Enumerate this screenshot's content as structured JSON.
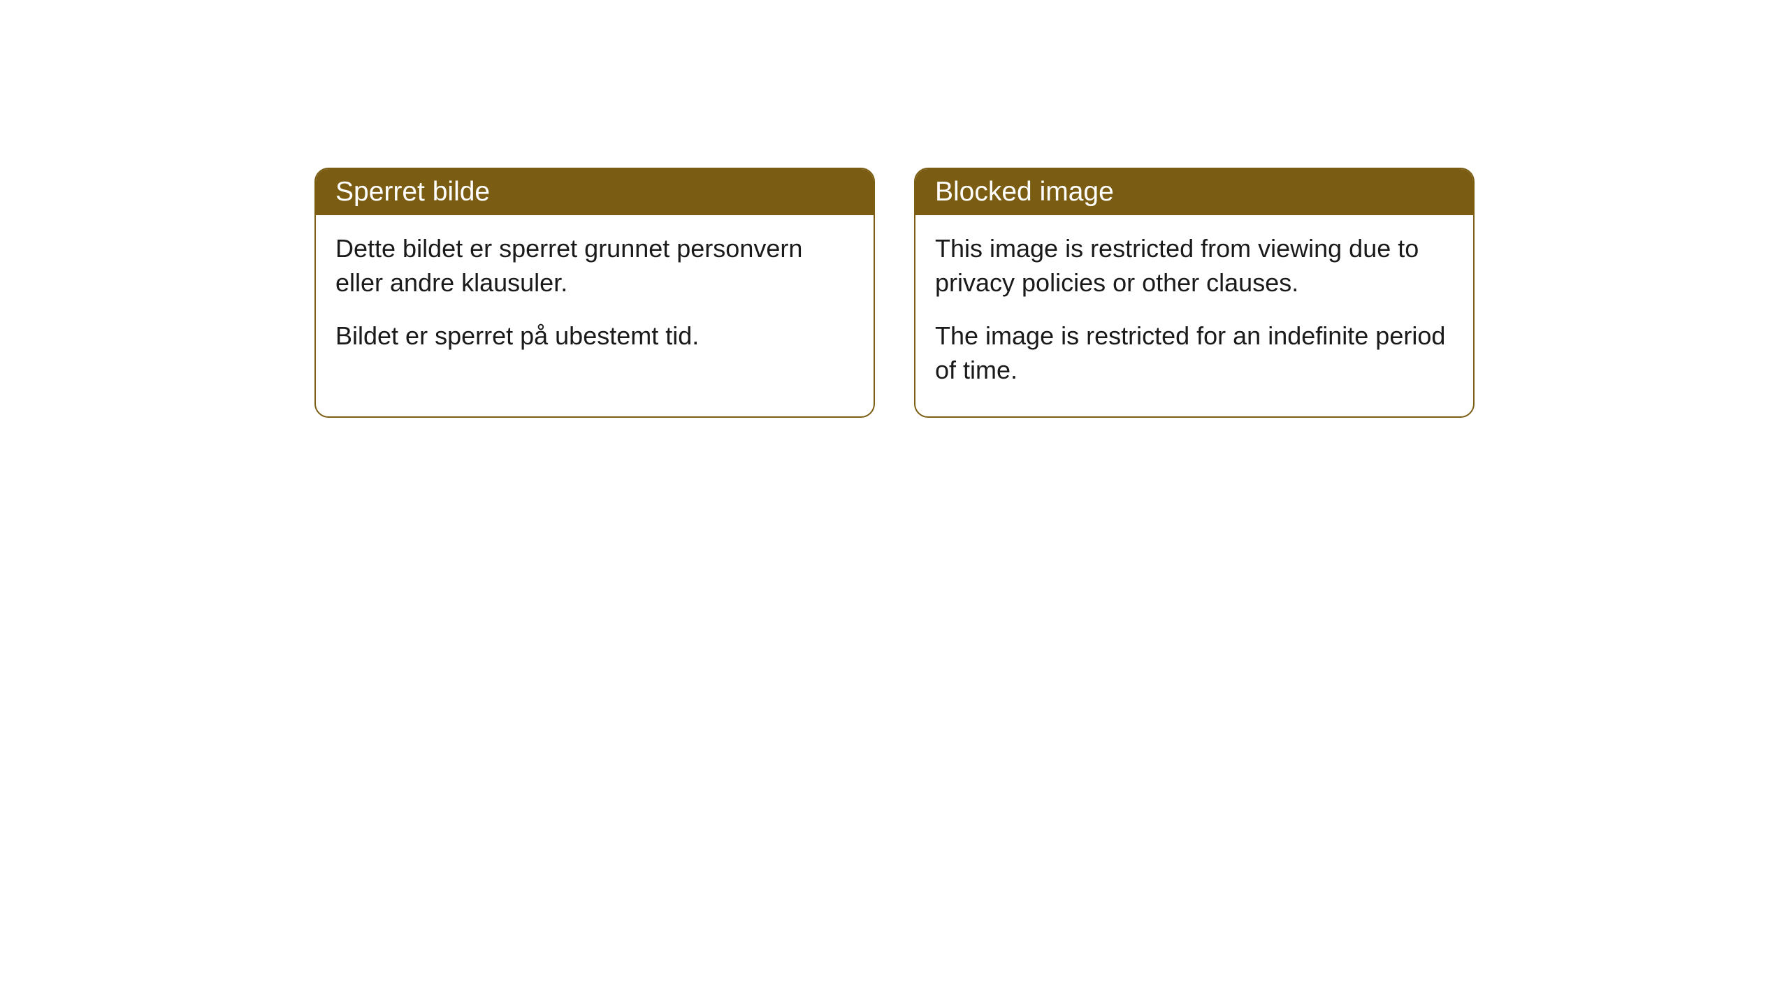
{
  "cards": [
    {
      "title": "Sperret bilde",
      "paragraph1": "Dette bildet er sperret grunnet personvern eller andre klausuler.",
      "paragraph2": "Bildet er sperret på ubestemt tid."
    },
    {
      "title": "Blocked image",
      "paragraph1": "This image is restricted from viewing due to privacy policies or other clauses.",
      "paragraph2": "The image is restricted for an indefinite period of time."
    }
  ],
  "styling": {
    "header_bg_color": "#7a5c12",
    "header_text_color": "#ffffff",
    "border_color": "#7a5c12",
    "body_bg_color": "#ffffff",
    "body_text_color": "#1a1a1a",
    "border_radius": 20,
    "header_fontsize": 39,
    "body_fontsize": 36
  }
}
